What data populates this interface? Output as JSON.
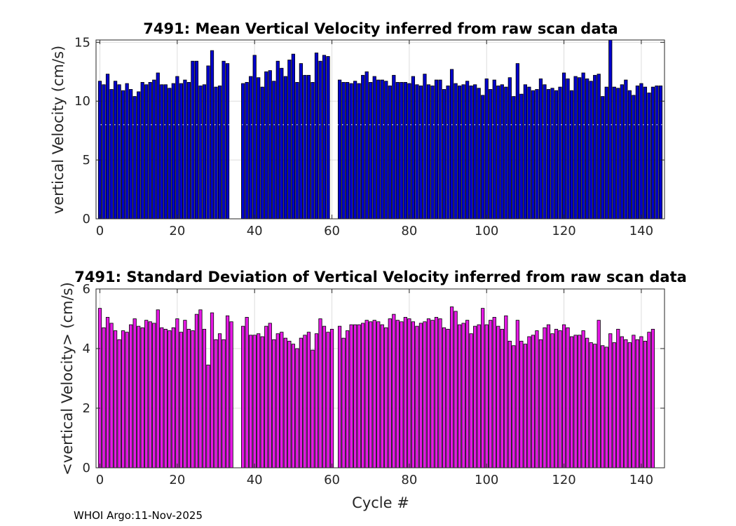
{
  "footer": "WHOI Argo:11-Nov-2025",
  "chart_data": [
    {
      "type": "bar",
      "title": "7491: Mean Vertical Velocity inferred from raw scan data",
      "ylabel": "vertical Velocity (cm/s)",
      "xlabel": "",
      "xlim": [
        -1,
        146
      ],
      "ylim": [
        0,
        15.2
      ],
      "xticks": [
        0,
        20,
        40,
        60,
        80,
        100,
        120,
        140
      ],
      "yticks": [
        0,
        5,
        10,
        15
      ],
      "color": "#0000cc",
      "reference_line": 8.0,
      "grid": true,
      "x_start": 0,
      "values": [
        11.7,
        11.4,
        12.3,
        11.0,
        11.7,
        11.4,
        10.9,
        11.5,
        11.0,
        10.4,
        10.8,
        11.6,
        11.4,
        11.6,
        11.8,
        12.4,
        11.4,
        11.4,
        11.1,
        11.5,
        12.1,
        11.5,
        11.8,
        11.6,
        13.4,
        13.4,
        11.3,
        11.4,
        13.0,
        14.3,
        11.2,
        11.3,
        13.4,
        13.2,
        null,
        null,
        null,
        11.5,
        11.6,
        12.1,
        13.9,
        12.0,
        11.2,
        12.5,
        12.6,
        11.7,
        13.4,
        12.8,
        12.1,
        13.5,
        14.0,
        11.6,
        13.2,
        12.2,
        12.2,
        11.6,
        14.1,
        13.4,
        13.9,
        13.8,
        null,
        null,
        11.8,
        11.6,
        11.6,
        11.5,
        11.7,
        11.5,
        12.2,
        12.5,
        11.6,
        12.1,
        11.8,
        11.8,
        11.7,
        11.3,
        12.2,
        11.6,
        11.6,
        11.6,
        11.5,
        12.1,
        11.4,
        11.3,
        12.3,
        11.4,
        11.3,
        11.8,
        11.8,
        11.0,
        11.3,
        12.7,
        11.5,
        11.3,
        11.4,
        11.7,
        11.3,
        11.4,
        11.1,
        10.5,
        11.9,
        11.0,
        11.8,
        11.3,
        11.4,
        11.2,
        12.0,
        10.4,
        13.2,
        10.6,
        11.4,
        11.2,
        10.9,
        11.0,
        11.9,
        11.4,
        11.0,
        11.1,
        10.9,
        11.2,
        12.4,
        11.9,
        10.9,
        12.1,
        12.0,
        12.4,
        11.9,
        11.7,
        12.2,
        12.3,
        10.4,
        11.2,
        15.2,
        11.2,
        11.1,
        11.4,
        11.8,
        10.9,
        10.5,
        11.3,
        11.5,
        11.2,
        10.7,
        11.2,
        11.3,
        11.3
      ]
    },
    {
      "type": "bar",
      "title": "7491: Standard Deviation of Vertical Velocity inferred from raw scan data",
      "ylabel": "<vertical Velocity> (cm/s)",
      "xlabel": "Cycle #",
      "xlim": [
        -1,
        146
      ],
      "ylim": [
        0,
        6
      ],
      "xticks": [
        0,
        20,
        40,
        60,
        80,
        100,
        120,
        140
      ],
      "yticks": [
        0,
        2,
        4,
        6
      ],
      "color": "#e619e6",
      "grid": true,
      "x_start": 0,
      "values": [
        5.35,
        4.7,
        5.05,
        4.85,
        4.6,
        4.3,
        4.6,
        4.55,
        4.8,
        5.0,
        4.75,
        4.7,
        4.95,
        4.9,
        4.85,
        5.3,
        4.7,
        4.65,
        4.6,
        4.7,
        5.0,
        4.55,
        4.95,
        4.65,
        4.6,
        5.15,
        5.3,
        4.65,
        3.45,
        5.2,
        4.3,
        4.5,
        4.3,
        5.1,
        4.9,
        null,
        null,
        4.75,
        5.05,
        4.45,
        4.45,
        4.5,
        4.4,
        4.75,
        4.85,
        4.3,
        4.5,
        4.55,
        4.35,
        4.25,
        4.15,
        4.0,
        4.35,
        4.45,
        4.55,
        3.95,
        4.5,
        5.0,
        4.75,
        4.55,
        4.65,
        null,
        4.75,
        4.35,
        4.6,
        4.8,
        4.8,
        4.8,
        4.85,
        4.95,
        4.9,
        4.95,
        4.9,
        4.8,
        4.7,
        5.0,
        5.15,
        4.95,
        4.9,
        5.05,
        5.0,
        4.9,
        4.75,
        4.85,
        4.9,
        5.0,
        4.95,
        5.05,
        5.0,
        4.7,
        4.65,
        5.4,
        5.25,
        4.8,
        4.85,
        4.95,
        4.5,
        4.75,
        4.8,
        5.35,
        4.8,
        4.95,
        5.05,
        4.75,
        4.65,
        5.1,
        4.25,
        4.1,
        4.95,
        4.25,
        4.15,
        4.4,
        4.45,
        4.6,
        4.3,
        4.7,
        4.8,
        4.5,
        4.65,
        4.6,
        4.8,
        4.7,
        4.4,
        4.45,
        4.45,
        4.6,
        4.35,
        4.2,
        4.15,
        4.95,
        4.1,
        4.05,
        4.5,
        4.2,
        4.65,
        4.4,
        4.3,
        4.2,
        4.45,
        4.3,
        4.4,
        4.25,
        4.55,
        4.65
      ]
    }
  ]
}
